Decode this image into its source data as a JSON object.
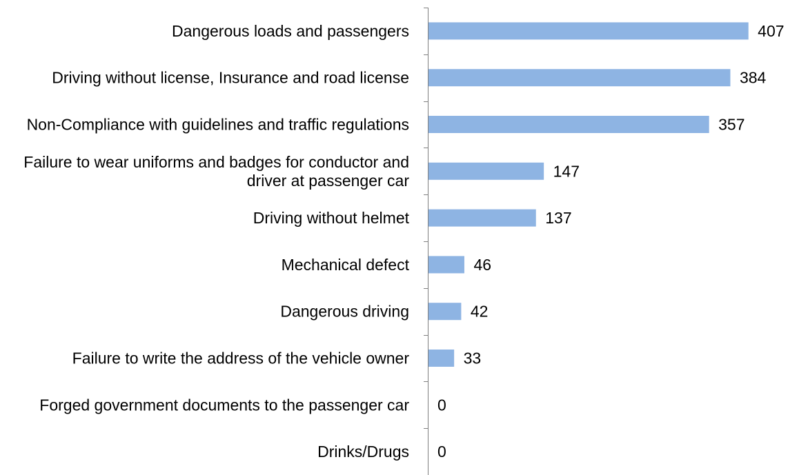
{
  "chart_data": {
    "type": "bar",
    "orientation": "horizontal",
    "title": "",
    "xlabel": "",
    "ylabel": "",
    "categories": [
      [
        "Dangerous loads and passengers"
      ],
      [
        "Driving without license, Insurance and road license"
      ],
      [
        "Non-Compliance with guidelines and traffic regulations"
      ],
      [
        "Failure to wear uniforms and badges for conductor and",
        "driver at passenger car"
      ],
      [
        "Driving without helmet"
      ],
      [
        "Mechanical defect"
      ],
      [
        "Dangerous driving"
      ],
      [
        "Failure to write the address of the vehicle owner"
      ],
      [
        "Forged government documents to the passenger car"
      ],
      [
        "Drinks/Drugs"
      ]
    ],
    "values": [
      407,
      384,
      357,
      147,
      137,
      46,
      42,
      33,
      0,
      0
    ],
    "data_labels": [
      "407",
      "384",
      "357",
      "147",
      "137",
      "46",
      "42",
      "33",
      "0",
      "0"
    ],
    "xlim": [
      0,
      420
    ],
    "grid": false,
    "legend": "none",
    "bar_color": "#8EB4E3",
    "axis_color": "#7F7F7F",
    "text_color": "#000000"
  }
}
